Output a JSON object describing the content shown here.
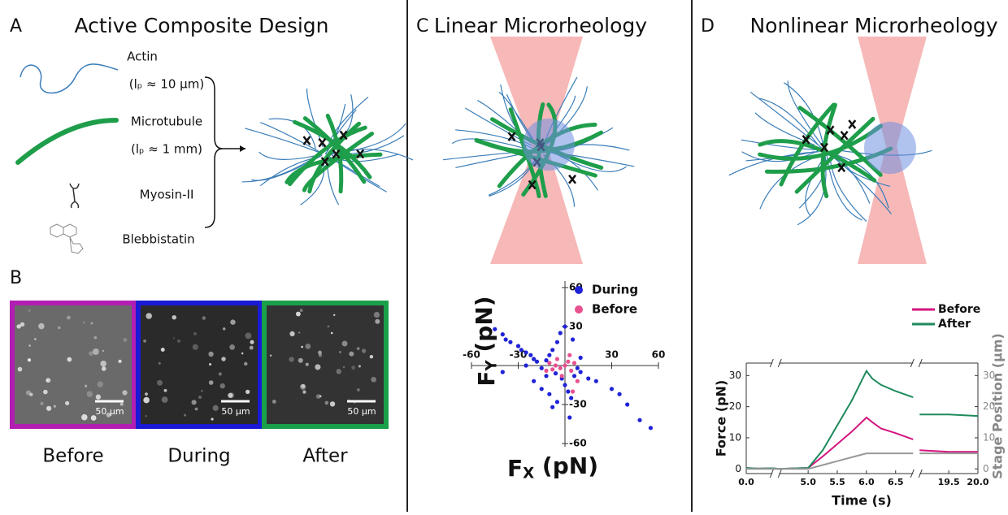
{
  "panels": {
    "a": {
      "label": "A",
      "title": "Active Composite Design",
      "components": [
        "Actin",
        "(lₚ ≈ 10 µm)",
        "Microtubule",
        "(lₚ ≈ 1 mm)",
        "Myosin-II",
        "Blebbistatin"
      ]
    },
    "b": {
      "label": "B",
      "images": [
        {
          "caption": "Before",
          "scale_bar": "50 µm"
        },
        {
          "caption": "During",
          "scale_bar": "50 µm"
        },
        {
          "caption": "After",
          "scale_bar": "50 µm"
        }
      ]
    },
    "c": {
      "label": "C",
      "title": "Linear Microrheology"
    },
    "d": {
      "label": "D",
      "title": "Nonlinear Microrheology"
    }
  },
  "chart_data": [
    {
      "type": "scatter",
      "x_label": "FX (pN)",
      "y_label": "FY (pN)",
      "xlim": [
        -60,
        60
      ],
      "ylim": [
        -60,
        60
      ],
      "xticks": [
        -60,
        -30,
        30,
        60
      ],
      "yticks": [
        60,
        30,
        -30,
        -60
      ],
      "legend": "top-right",
      "series": [
        {
          "name": "During",
          "color": "#1f22d6",
          "x": [
            -45,
            -40,
            -38,
            -35,
            -30,
            -28,
            -25,
            -22,
            -20,
            -18,
            -15,
            -12,
            -10,
            -8,
            -5,
            -3,
            -2,
            0,
            2,
            4,
            6,
            8,
            10,
            -20,
            -15,
            -10,
            -5,
            -8,
            -12,
            0,
            5,
            10,
            20,
            30,
            35,
            40,
            48,
            55,
            15,
            -25,
            -40,
            -6,
            3
          ],
          "values": [
            28,
            24,
            20,
            18,
            15,
            12,
            10,
            8,
            5,
            3,
            -2,
            4,
            8,
            12,
            18,
            25,
            -10,
            -15,
            -20,
            -25,
            -8,
            -2,
            6,
            -12,
            -18,
            -22,
            -28,
            -32,
            -8,
            30,
            20,
            -5,
            -12,
            -18,
            -22,
            -30,
            -42,
            -48,
            -10,
            0,
            -5,
            -6,
            -40
          ]
        },
        {
          "name": "Before",
          "color": "#e8508f",
          "x": [
            -10,
            -8,
            -5,
            -3,
            0,
            2,
            4,
            -6,
            6,
            -2,
            8,
            -12,
            3,
            5
          ],
          "values": [
            2,
            -3,
            5,
            -2,
            0,
            3,
            -4,
            0,
            2,
            -8,
            -12,
            -4,
            8,
            -20
          ]
        }
      ]
    },
    {
      "type": "line",
      "x_label": "Time (s)",
      "y_label": "Force (pN)",
      "y2_label": "Stage Position (µm)",
      "xsegments": [
        [
          0,
          0.45
        ],
        [
          4.5,
          6.8
        ],
        [
          19,
          20
        ]
      ],
      "ylim": [
        -1.5,
        34
      ],
      "yticks": [
        0,
        10,
        20,
        30
      ],
      "y2lim": [
        -1.5,
        34
      ],
      "y2ticks": [
        0,
        10,
        20,
        30
      ],
      "xticks": [
        {
          "value": 0,
          "label": "0.0"
        },
        {
          "value": 5,
          "label": "5.0"
        },
        5.5,
        {
          "value": 6,
          "label": "6.0"
        },
        6.5,
        19.5,
        {
          "value": 20,
          "label": "20.0"
        }
      ],
      "legend": "top-right",
      "x": [
        0,
        0.2,
        0.45,
        4.5,
        4.8,
        5.0,
        5.25,
        5.5,
        5.75,
        6.0,
        6.1,
        6.25,
        6.5,
        6.8,
        12,
        19.0,
        19.5,
        20.0
      ],
      "series": [
        {
          "name": "Before",
          "color": "#d4157f",
          "values": [
            0.3,
            0.1,
            0.2,
            0,
            0.2,
            0.3,
            4,
            8,
            12,
            16.5,
            15,
            13,
            11.5,
            9.5,
            null,
            6,
            5.5,
            5.5
          ]
        },
        {
          "name": "After",
          "color": "#1e8a5c",
          "values": [
            0.3,
            0.1,
            0.2,
            0,
            0.2,
            0.3,
            6,
            14,
            22,
            31.5,
            29,
            27,
            25,
            23,
            null,
            17.5,
            17.5,
            17
          ]
        },
        {
          "color": "#999999",
          "axis": "y2",
          "values": [
            0,
            0,
            0,
            0,
            0,
            0,
            1.25,
            2.5,
            3.75,
            5,
            5,
            5,
            5,
            5,
            null,
            5,
            5,
            5
          ]
        }
      ]
    }
  ]
}
